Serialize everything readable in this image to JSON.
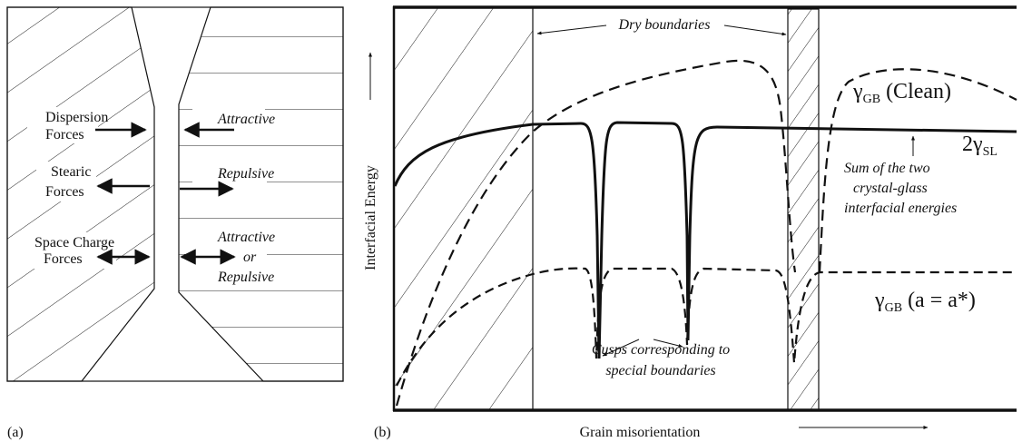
{
  "panel_a": {
    "label": "(a)",
    "forces": [
      {
        "name": [
          "Dispersion",
          "Forces"
        ],
        "effect": [
          "Attractive"
        ]
      },
      {
        "name": [
          "Stearic",
          "Forces"
        ],
        "effect": [
          "Repulsive"
        ]
      },
      {
        "name": [
          "Space Charge",
          "Forces"
        ],
        "effect": [
          "Attractive",
          "or",
          "Repulsive"
        ]
      }
    ]
  },
  "panel_b": {
    "label": "(b)",
    "dry_boundaries": "Dry boundaries",
    "y_axis": "Interfacial Energy",
    "x_axis": "Grain misorientation",
    "clean": {
      "symbol": "γ",
      "sub": "GB",
      "suffix": " (Clean)"
    },
    "sl": {
      "prefix": "2γ",
      "sub": "SL"
    },
    "sl_note": [
      "Sum of the two",
      "crystal-glass",
      "interfacial energies"
    ],
    "doped": {
      "symbol": "γ",
      "sub": "GB",
      "suffix": " (a = a*)"
    },
    "cusps": [
      "Cusps corresponding to",
      "special boundaries"
    ]
  }
}
